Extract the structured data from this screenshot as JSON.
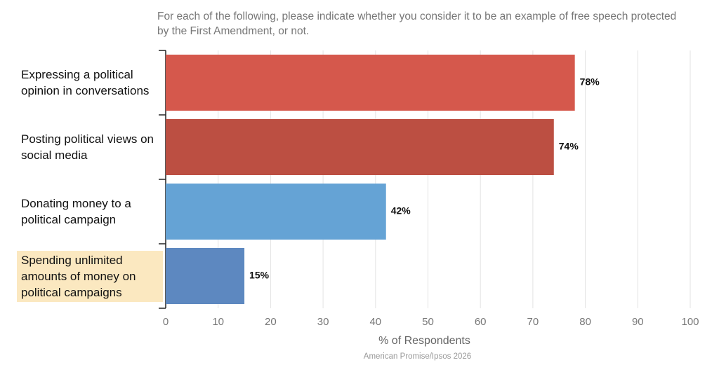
{
  "chart_data": {
    "type": "bar",
    "orientation": "horizontal",
    "subtitle": "For each of the following, please indicate whether you consider it to be an example of free speech protected by the First Amendment, or not.",
    "categories": [
      "Expressing a political opinion in conversations",
      "Posting political views on social media",
      "Donating money to a political campaign",
      "Spending unlimited amounts of money on political campaigns"
    ],
    "values": [
      78,
      74,
      42,
      15
    ],
    "value_labels": [
      "78%",
      "74%",
      "42%",
      "15%"
    ],
    "colors": [
      "#d5584c",
      "#bc4f42",
      "#65a3d5",
      "#5d88c0"
    ],
    "xlim": [
      0,
      100
    ],
    "xticks": [
      0,
      10,
      20,
      30,
      40,
      50,
      60,
      70,
      80,
      90,
      100
    ],
    "xlabel": "% of Respondents",
    "source": "American Promise/Ipsos 2026",
    "grid": true
  }
}
